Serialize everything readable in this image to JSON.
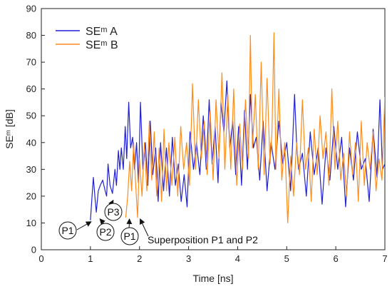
{
  "chart_data": {
    "type": "line",
    "xlabel": "Time [ns]",
    "ylabel": "SEᵐ [dB]",
    "xlim": [
      0,
      7
    ],
    "ylim": [
      0,
      90
    ],
    "xticks": [
      0,
      1,
      2,
      3,
      4,
      5,
      6,
      7
    ],
    "yticks": [
      0,
      10,
      20,
      30,
      40,
      50,
      60,
      70,
      80,
      90
    ],
    "grid": false,
    "legend_position": "top-left",
    "series": [
      {
        "name": "SEᵐ A",
        "color": "#1f1fd6",
        "x": [
          1.0,
          1.03,
          1.06,
          1.09,
          1.12,
          1.16,
          1.2,
          1.25,
          1.3,
          1.33,
          1.36,
          1.4,
          1.45,
          1.5,
          1.53,
          1.57,
          1.6,
          1.63,
          1.67,
          1.71,
          1.74,
          1.78,
          1.82,
          1.86,
          1.9,
          1.94,
          1.98,
          2.02,
          2.07,
          2.12,
          2.17,
          2.22,
          2.27,
          2.33,
          2.38,
          2.43,
          2.49,
          2.55,
          2.61,
          2.67,
          2.73,
          2.79,
          2.85,
          2.91,
          2.97,
          3.03,
          3.1,
          3.16,
          3.23,
          3.3,
          3.36,
          3.42,
          3.48,
          3.54,
          3.6,
          3.66,
          3.72,
          3.78,
          3.84,
          3.9,
          3.96,
          4.02,
          4.08,
          4.14,
          4.2,
          4.26,
          4.32,
          4.38,
          4.45,
          4.52,
          4.6,
          4.68,
          4.76,
          4.84,
          4.92,
          5.0,
          5.08,
          5.16,
          5.2,
          5.24,
          5.32,
          5.4,
          5.48,
          5.56,
          5.64,
          5.72,
          5.8,
          5.88,
          5.96,
          6.04,
          6.12,
          6.2,
          6.28,
          6.36,
          6.44,
          6.52,
          6.6,
          6.68,
          6.76,
          6.84,
          6.9,
          6.95,
          7.0
        ],
        "y": [
          11,
          19,
          27,
          20,
          14,
          22,
          24,
          26,
          22,
          20,
          32,
          24,
          21,
          30,
          24,
          37,
          30,
          38,
          30,
          46,
          34,
          55,
          38,
          42,
          30,
          40,
          25,
          55,
          30,
          40,
          24,
          48,
          28,
          38,
          18,
          40,
          22,
          38,
          20,
          42,
          24,
          32,
          18,
          28,
          16,
          44,
          30,
          40,
          28,
          50,
          30,
          56,
          32,
          46,
          25,
          55,
          44,
          63,
          38,
          48,
          28,
          46,
          24,
          52,
          30,
          58,
          38,
          42,
          26,
          48,
          22,
          40,
          30,
          48,
          32,
          40,
          22,
          58,
          40,
          30,
          36,
          20,
          44,
          28,
          38,
          17,
          38,
          26,
          46,
          30,
          42,
          16,
          38,
          26,
          44,
          30,
          34,
          18,
          45,
          27,
          56,
          30,
          32
        ]
      },
      {
        "name": "SEᵐ B",
        "color": "#ff8c1a",
        "x": [
          1.72,
          1.76,
          1.8,
          1.84,
          1.88,
          1.92,
          1.96,
          2.0,
          2.05,
          2.1,
          2.15,
          2.2,
          2.25,
          2.3,
          2.35,
          2.4,
          2.45,
          2.5,
          2.55,
          2.6,
          2.66,
          2.72,
          2.78,
          2.84,
          2.9,
          2.96,
          3.02,
          3.08,
          3.14,
          3.2,
          3.26,
          3.32,
          3.38,
          3.44,
          3.5,
          3.56,
          3.62,
          3.68,
          3.74,
          3.8,
          3.86,
          3.92,
          3.98,
          4.04,
          4.1,
          4.16,
          4.22,
          4.26,
          4.3,
          4.36,
          4.42,
          4.48,
          4.54,
          4.6,
          4.66,
          4.7,
          4.74,
          4.78,
          4.84,
          4.9,
          4.96,
          5.02,
          5.08,
          5.14,
          5.2,
          5.26,
          5.32,
          5.38,
          5.44,
          5.5,
          5.56,
          5.62,
          5.68,
          5.74,
          5.8,
          5.86,
          5.92,
          5.98,
          6.04,
          6.1,
          6.16,
          6.22,
          6.28,
          6.34,
          6.4,
          6.46,
          6.52,
          6.58,
          6.64,
          6.7,
          6.76,
          6.82,
          6.88,
          6.94,
          7.0
        ],
        "y": [
          12,
          20,
          33,
          22,
          40,
          25,
          12,
          34,
          20,
          40,
          22,
          48,
          26,
          44,
          20,
          38,
          18,
          45,
          22,
          40,
          24,
          42,
          20,
          46,
          30,
          40,
          24,
          62,
          30,
          56,
          34,
          48,
          28,
          52,
          26,
          56,
          34,
          66,
          30,
          58,
          30,
          60,
          24,
          47,
          30,
          56,
          34,
          80,
          38,
          58,
          30,
          70,
          28,
          64,
          32,
          44,
          81,
          30,
          60,
          26,
          40,
          10,
          35,
          20,
          40,
          28,
          56,
          30,
          38,
          18,
          45,
          28,
          50,
          34,
          44,
          24,
          60,
          30,
          48,
          26,
          36,
          20,
          44,
          28,
          40,
          18,
          48,
          24,
          40,
          30,
          44,
          22,
          34,
          26,
          57
        ]
      }
    ],
    "annotations": [
      {
        "text": "P1",
        "x": 1.0,
        "y": 11
      },
      {
        "text": "P2",
        "x": 1.18,
        "y": 12
      },
      {
        "text": "P3",
        "x": 1.45,
        "y": 19
      },
      {
        "text": "P1",
        "x": 1.78,
        "y": 12
      },
      {
        "text": "Superposition P1 and P2",
        "x": 1.97,
        "y": 12
      }
    ]
  }
}
